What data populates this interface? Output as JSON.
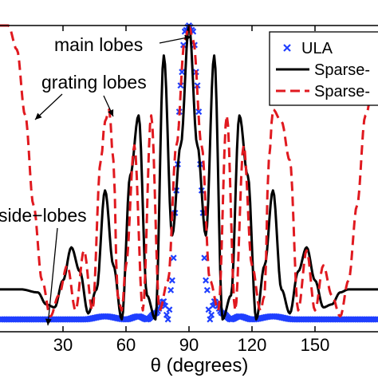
{
  "chart_data": {
    "type": "line",
    "xlabel": "θ (degrees)",
    "xlim": [
      0,
      180
    ],
    "ylim": [
      0,
      1
    ],
    "xticks": [
      30,
      60,
      90,
      120,
      150
    ],
    "grid": false,
    "legend_position": "top-right",
    "series": [
      {
        "name": "ULA",
        "style": "markers",
        "color": "#1f3fff",
        "x": [
          0,
          10,
          20,
          30,
          40,
          50,
          60,
          66,
          70,
          74,
          78,
          80,
          82,
          84,
          86,
          88,
          90,
          92,
          94,
          96,
          98,
          100,
          102,
          106,
          110,
          114,
          120,
          130,
          140,
          150,
          160,
          170,
          180
        ],
        "y": [
          0.02,
          0.02,
          0.02,
          0.02,
          0.02,
          0.03,
          0.02,
          0.03,
          0.02,
          0.04,
          0.08,
          0.02,
          0.15,
          0.45,
          0.8,
          0.98,
          1.0,
          0.98,
          0.8,
          0.45,
          0.15,
          0.02,
          0.08,
          0.04,
          0.02,
          0.03,
          0.02,
          0.03,
          0.02,
          0.02,
          0.02,
          0.02,
          0.02
        ]
      },
      {
        "name": "Sparse-",
        "style": "solid",
        "color": "#000000",
        "x": [
          0,
          10,
          18,
          22,
          26,
          30,
          34,
          38,
          42,
          46,
          50,
          54,
          58,
          62,
          66,
          70,
          74,
          78,
          82,
          86,
          90,
          94,
          98,
          102,
          106,
          110,
          114,
          118,
          122,
          126,
          130,
          134,
          138,
          142,
          146,
          150,
          154,
          158,
          162,
          166,
          170,
          180
        ],
        "y": [
          0.12,
          0.12,
          0.11,
          0.07,
          0.06,
          0.15,
          0.26,
          0.18,
          0.04,
          0.12,
          0.45,
          0.2,
          0.02,
          0.5,
          0.7,
          0.1,
          0.02,
          0.9,
          0.3,
          0.6,
          1.0,
          0.6,
          0.3,
          0.9,
          0.02,
          0.1,
          0.7,
          0.5,
          0.02,
          0.2,
          0.45,
          0.12,
          0.04,
          0.18,
          0.26,
          0.15,
          0.06,
          0.07,
          0.11,
          0.12,
          0.12,
          0.12
        ]
      },
      {
        "name": "Sparse-",
        "style": "dashed",
        "color": "#e0191f",
        "x": [
          0,
          4,
          8,
          12,
          16,
          20,
          24,
          28,
          32,
          36,
          40,
          44,
          48,
          50,
          52,
          54,
          56,
          58,
          60,
          64,
          68,
          72,
          76,
          80,
          84,
          88,
          90,
          92,
          96,
          100,
          104,
          108,
          112,
          116,
          120,
          124,
          126,
          128,
          130,
          134,
          138,
          142,
          146,
          150,
          154,
          158,
          162,
          166,
          170,
          174,
          180
        ],
        "y": [
          1.0,
          1.0,
          0.92,
          0.7,
          0.4,
          0.15,
          0.03,
          0.1,
          0.2,
          0.05,
          0.25,
          0.05,
          0.55,
          0.68,
          0.72,
          0.55,
          0.1,
          0.05,
          0.2,
          0.6,
          0.05,
          0.7,
          0.05,
          0.15,
          0.6,
          0.95,
          1.0,
          0.95,
          0.6,
          0.15,
          0.05,
          0.7,
          0.05,
          0.6,
          0.2,
          0.05,
          0.1,
          0.55,
          0.72,
          0.68,
          0.55,
          0.05,
          0.25,
          0.05,
          0.2,
          0.1,
          0.03,
          0.15,
          0.4,
          0.7,
          0.92
        ]
      }
    ],
    "annotations": [
      {
        "text": "main lobes",
        "target": [
          90,
          1.0
        ]
      },
      {
        "text": "grating lobes",
        "target": [
          50,
          0.72
        ]
      },
      {
        "text": "side−lobes",
        "target": [
          22,
          0.02
        ]
      }
    ]
  }
}
